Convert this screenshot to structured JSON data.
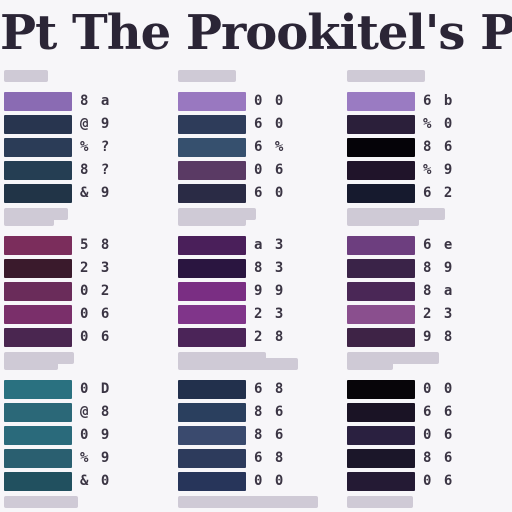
{
  "title": "Pt The Prookitel's Phing Porty",
  "panels": [
    {
      "col": 0,
      "row": 0,
      "swatches": [
        "#8a6bb3",
        "#28354f",
        "#2b3c57",
        "#253e53",
        "#213447"
      ],
      "glyphs": [
        "8 a",
        "@ 9",
        "% ?",
        "8 ?",
        "& 9"
      ]
    },
    {
      "col": 1,
      "row": 0,
      "swatches": [
        "#9978c0",
        "#2e3c5a",
        "#36506e",
        "#5a3a64",
        "#2a2b45"
      ],
      "glyphs": [
        "0 0",
        "6 0",
        "6 %",
        "0 6",
        "6 0"
      ]
    },
    {
      "col": 2,
      "row": 0,
      "swatches": [
        "#9a7bc2",
        "#2b1f3a",
        "#050308",
        "#20142a",
        "#161a2e"
      ],
      "glyphs": [
        "6 b",
        "% 0",
        "8 6",
        "% 9",
        "6 2"
      ]
    },
    {
      "col": 0,
      "row": 1,
      "swatches": [
        "#7b2d5c",
        "#3a1a2c",
        "#6a2c5a",
        "#7a2f6a",
        "#4a2650"
      ],
      "glyphs": [
        "5 8",
        "2 3",
        "0 2",
        "0 6",
        "0 6"
      ]
    },
    {
      "col": 1,
      "row": 1,
      "swatches": [
        "#4a1f5a",
        "#2a1540",
        "#7a2e83",
        "#80358a",
        "#4b2458"
      ],
      "glyphs": [
        "a 3",
        "8 3",
        "9 9",
        "2 3",
        "2 8"
      ]
    },
    {
      "col": 2,
      "row": 1,
      "swatches": [
        "#6d3e7f",
        "#3a2348",
        "#4a2756",
        "#8a4f8e",
        "#3e2346"
      ],
      "glyphs": [
        "6 e",
        "8 9",
        "8 a",
        "2 3",
        "9 8"
      ]
    },
    {
      "col": 0,
      "row": 2,
      "swatches": [
        "#2a7180",
        "#2b6878",
        "#2a6a7b",
        "#2a5f70",
        "#21505f"
      ],
      "glyphs": [
        "0 D",
        "@ 8",
        "0 9",
        "% 9",
        "& 0"
      ]
    },
    {
      "col": 1,
      "row": 2,
      "swatches": [
        "#22304c",
        "#2a3f5e",
        "#3a4a6e",
        "#2d3b5c",
        "#27355a"
      ],
      "glyphs": [
        "6 8",
        "8 6",
        "8 6",
        "6 8",
        "0 0"
      ]
    },
    {
      "col": 2,
      "row": 2,
      "swatches": [
        "#070509",
        "#1a1325",
        "#2a2040",
        "#1b1629",
        "#241a34"
      ],
      "glyphs": [
        "0 0",
        "6 6",
        "0 6",
        "8 6",
        "0 6"
      ]
    }
  ]
}
